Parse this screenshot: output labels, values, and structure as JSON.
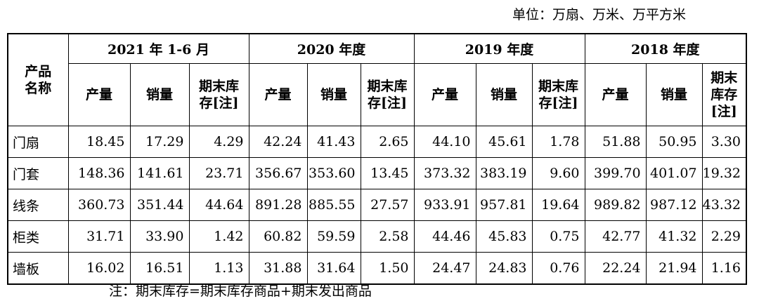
{
  "unit": "单位：万扇、万米、万平方米",
  "header": {
    "corner": "产品名称",
    "periods": [
      "2021 年 1-6 月",
      "2020 年度",
      "2019 年度",
      "2018 年度"
    ],
    "sub": [
      "产量",
      "销量",
      "期末库存[注]"
    ]
  },
  "rows": [
    {
      "name": "门扇",
      "values": [
        "18.45",
        "17.29",
        "4.29",
        "42.24",
        "41.43",
        "2.65",
        "44.10",
        "45.61",
        "1.78",
        "51.88",
        "50.95",
        "3.30"
      ]
    },
    {
      "name": "门套",
      "values": [
        "148.36",
        "141.61",
        "23.71",
        "356.67",
        "353.60",
        "13.45",
        "373.32",
        "383.19",
        "9.60",
        "399.70",
        "401.07",
        "19.32"
      ]
    },
    {
      "name": "线条",
      "values": [
        "360.73",
        "351.44",
        "44.64",
        "891.28",
        "885.55",
        "27.57",
        "933.91",
        "957.81",
        "19.64",
        "989.82",
        "987.12",
        "43.32"
      ]
    },
    {
      "name": "柜类",
      "values": [
        "31.71",
        "33.90",
        "1.42",
        "60.82",
        "59.59",
        "2.58",
        "44.46",
        "45.83",
        "0.75",
        "42.77",
        "41.32",
        "2.29"
      ]
    },
    {
      "name": "墙板",
      "values": [
        "16.02",
        "16.51",
        "1.13",
        "31.88",
        "31.64",
        "1.50",
        "24.47",
        "24.83",
        "0.76",
        "22.24",
        "21.94",
        "1.16"
      ]
    }
  ],
  "note": "注：期末库存=期末库存商品+期末发出商品"
}
